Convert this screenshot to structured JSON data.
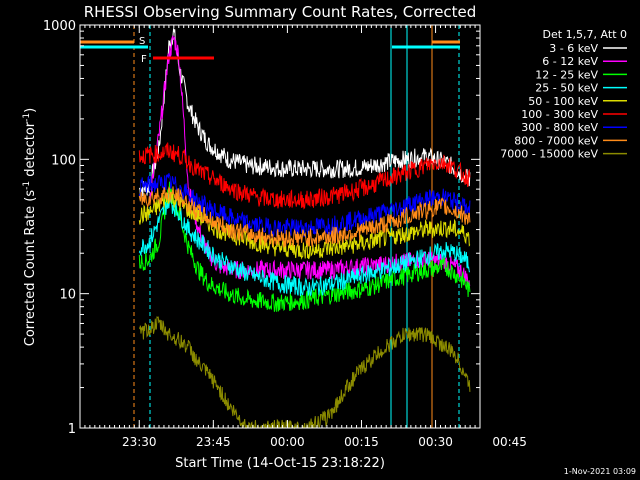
{
  "chart_data": {
    "type": "line",
    "title": "RHESSI Observing Summary Count Rates, Corrected",
    "xlabel": "Start Time (14-Oct-15 23:18:22)",
    "ylabel": "Corrected Count Rate (s",
    "ylabel_sup1": "-1",
    "ylabel_mid": " detector",
    "ylabel_sup2": "-1",
    "ylabel_end": ")",
    "yscale": "log",
    "ylim": [
      1,
      1000
    ],
    "xlim_minutes": [
      0,
      81
    ],
    "x_ticks": [
      {
        "m": 12,
        "label": "23:30"
      },
      {
        "m": 27,
        "label": "23:45"
      },
      {
        "m": 42,
        "label": "00:00"
      },
      {
        "m": 57,
        "label": "00:15"
      },
      {
        "m": 72,
        "label": "00:30"
      },
      {
        "m": 87,
        "label": "00:45"
      }
    ],
    "y_ticks": [
      {
        "v": 1,
        "label": "1"
      },
      {
        "v": 10,
        "label": "10"
      },
      {
        "v": 100,
        "label": "100"
      },
      {
        "v": 1000,
        "label": "1000"
      }
    ],
    "legend_header": "Det 1,5,7, Att 0",
    "legend_position": "right",
    "series": [
      {
        "name": "3 - 6 keV",
        "color": "#ffffff"
      },
      {
        "name": "6 - 12 keV",
        "color": "#ff00ff"
      },
      {
        "name": "12 - 25 keV",
        "color": "#00ff00"
      },
      {
        "name": "25 - 50 keV",
        "color": "#00ffff"
      },
      {
        "name": "50 - 100 keV",
        "color": "#dddd00"
      },
      {
        "name": "100 - 300 keV",
        "color": "#ff0000"
      },
      {
        "name": "300 - 800 keV",
        "color": "#0000ff"
      },
      {
        "name": "800 - 7000 keV",
        "color": "#ff8c1a"
      },
      {
        "name": "7000 - 15000 keV",
        "color": "#8b8b00"
      }
    ],
    "curves": {
      "3 - 6 keV": [
        [
          12,
          60
        ],
        [
          14,
          62
        ],
        [
          16,
          120
        ],
        [
          18,
          700
        ],
        [
          19,
          900
        ],
        [
          20,
          500
        ],
        [
          22,
          250
        ],
        [
          24,
          170
        ],
        [
          26,
          130
        ],
        [
          30,
          100
        ],
        [
          34,
          90
        ],
        [
          38,
          88
        ],
        [
          42,
          85
        ],
        [
          48,
          85
        ],
        [
          54,
          85
        ],
        [
          58,
          88
        ],
        [
          62,
          95
        ],
        [
          66,
          100
        ],
        [
          70,
          105
        ],
        [
          72,
          100
        ],
        [
          74,
          95
        ],
        [
          76,
          85
        ],
        [
          78,
          75
        ],
        [
          79,
          70
        ]
      ],
      "6 - 12 keV": [
        [
          14,
          50
        ],
        [
          16,
          150
        ],
        [
          18,
          600
        ],
        [
          19,
          800
        ],
        [
          20,
          600
        ],
        [
          21,
          200
        ],
        [
          22,
          60
        ],
        [
          24,
          30
        ],
        [
          26,
          20
        ],
        [
          28,
          16
        ],
        [
          32,
          15
        ],
        [
          40,
          15
        ],
        [
          50,
          15
        ],
        [
          58,
          16
        ],
        [
          64,
          17
        ],
        [
          70,
          18
        ],
        [
          74,
          17
        ],
        [
          77,
          15
        ],
        [
          79,
          12
        ]
      ],
      "12 - 25 keV": [
        [
          12,
          17
        ],
        [
          14,
          18
        ],
        [
          16,
          25
        ],
        [
          18,
          60
        ],
        [
          20,
          40
        ],
        [
          22,
          22
        ],
        [
          24,
          15
        ],
        [
          26,
          12
        ],
        [
          30,
          10
        ],
        [
          34,
          9
        ],
        [
          40,
          8.5
        ],
        [
          46,
          9
        ],
        [
          52,
          10
        ],
        [
          58,
          11
        ],
        [
          64,
          13
        ],
        [
          70,
          15
        ],
        [
          74,
          16
        ],
        [
          76,
          14
        ],
        [
          78,
          12
        ],
        [
          79,
          10
        ]
      ],
      "25 - 50 keV": [
        [
          12,
          22
        ],
        [
          14,
          24
        ],
        [
          16,
          35
        ],
        [
          18,
          50
        ],
        [
          20,
          40
        ],
        [
          22,
          30
        ],
        [
          24,
          25
        ],
        [
          28,
          18
        ],
        [
          34,
          14
        ],
        [
          40,
          12
        ],
        [
          46,
          11
        ],
        [
          52,
          12
        ],
        [
          58,
          14
        ],
        [
          64,
          16
        ],
        [
          70,
          19
        ],
        [
          74,
          21
        ],
        [
          76,
          20
        ],
        [
          78,
          18
        ],
        [
          79,
          16
        ]
      ],
      "50 - 100 keV": [
        [
          12,
          38
        ],
        [
          14,
          40
        ],
        [
          16,
          45
        ],
        [
          18,
          55
        ],
        [
          20,
          48
        ],
        [
          22,
          42
        ],
        [
          24,
          38
        ],
        [
          28,
          30
        ],
        [
          34,
          25
        ],
        [
          40,
          22
        ],
        [
          46,
          21
        ],
        [
          52,
          22
        ],
        [
          58,
          24
        ],
        [
          64,
          27
        ],
        [
          70,
          30
        ],
        [
          74,
          31
        ],
        [
          76,
          30
        ],
        [
          78,
          28
        ],
        [
          79,
          26
        ]
      ],
      "100 - 300 keV": [
        [
          12,
          105
        ],
        [
          14,
          108
        ],
        [
          16,
          110
        ],
        [
          18,
          115
        ],
        [
          20,
          108
        ],
        [
          22,
          95
        ],
        [
          24,
          82
        ],
        [
          28,
          68
        ],
        [
          32,
          58
        ],
        [
          36,
          52
        ],
        [
          40,
          50
        ],
        [
          46,
          50
        ],
        [
          52,
          54
        ],
        [
          58,
          62
        ],
        [
          64,
          75
        ],
        [
          68,
          85
        ],
        [
          72,
          95
        ],
        [
          74,
          95
        ],
        [
          76,
          85
        ],
        [
          78,
          75
        ],
        [
          79,
          72
        ]
      ],
      "300 - 800 keV": [
        [
          12,
          62
        ],
        [
          14,
          64
        ],
        [
          16,
          66
        ],
        [
          18,
          68
        ],
        [
          20,
          62
        ],
        [
          22,
          55
        ],
        [
          24,
          48
        ],
        [
          28,
          40
        ],
        [
          32,
          35
        ],
        [
          36,
          32
        ],
        [
          40,
          31
        ],
        [
          46,
          31
        ],
        [
          52,
          33
        ],
        [
          58,
          37
        ],
        [
          64,
          43
        ],
        [
          68,
          48
        ],
        [
          72,
          52
        ],
        [
          74,
          52
        ],
        [
          76,
          48
        ],
        [
          78,
          44
        ],
        [
          79,
          42
        ]
      ],
      "800 - 7000 keV": [
        [
          12,
          50
        ],
        [
          14,
          52
        ],
        [
          16,
          54
        ],
        [
          18,
          56
        ],
        [
          20,
          52
        ],
        [
          22,
          46
        ],
        [
          24,
          40
        ],
        [
          28,
          33
        ],
        [
          32,
          29
        ],
        [
          36,
          27
        ],
        [
          40,
          26
        ],
        [
          46,
          26
        ],
        [
          52,
          27
        ],
        [
          58,
          30
        ],
        [
          64,
          35
        ],
        [
          68,
          40
        ],
        [
          72,
          44
        ],
        [
          74,
          44
        ],
        [
          76,
          41
        ],
        [
          78,
          38
        ],
        [
          79,
          36
        ]
      ],
      "7000 - 15000 keV": [
        [
          12,
          5
        ],
        [
          14,
          5.5
        ],
        [
          16,
          6
        ],
        [
          18,
          5
        ],
        [
          20,
          4.5
        ],
        [
          22,
          4
        ],
        [
          24,
          3
        ],
        [
          26,
          2.5
        ],
        [
          28,
          2
        ],
        [
          30,
          1.5
        ],
        [
          32,
          1.2
        ],
        [
          34,
          1
        ],
        [
          40,
          1
        ],
        [
          46,
          1
        ],
        [
          50,
          1.2
        ],
        [
          52,
          1.5
        ],
        [
          54,
          2
        ],
        [
          56,
          2.5
        ],
        [
          58,
          3
        ],
        [
          60,
          3.5
        ],
        [
          62,
          4
        ],
        [
          64,
          4.5
        ],
        [
          66,
          5
        ],
        [
          68,
          5
        ],
        [
          70,
          5
        ],
        [
          72,
          4.5
        ],
        [
          74,
          4
        ],
        [
          76,
          3.5
        ],
        [
          78,
          2.5
        ],
        [
          79,
          2
        ]
      ]
    },
    "annotations": [
      {
        "label": "S",
        "color": "#ff8c1a",
        "at_minute": 14,
        "value": 800
      },
      {
        "label": "F",
        "color": "#ff0000",
        "at_minute": 14,
        "value": 560
      }
    ]
  },
  "footer_date": "1-Nov-2021 03:09"
}
